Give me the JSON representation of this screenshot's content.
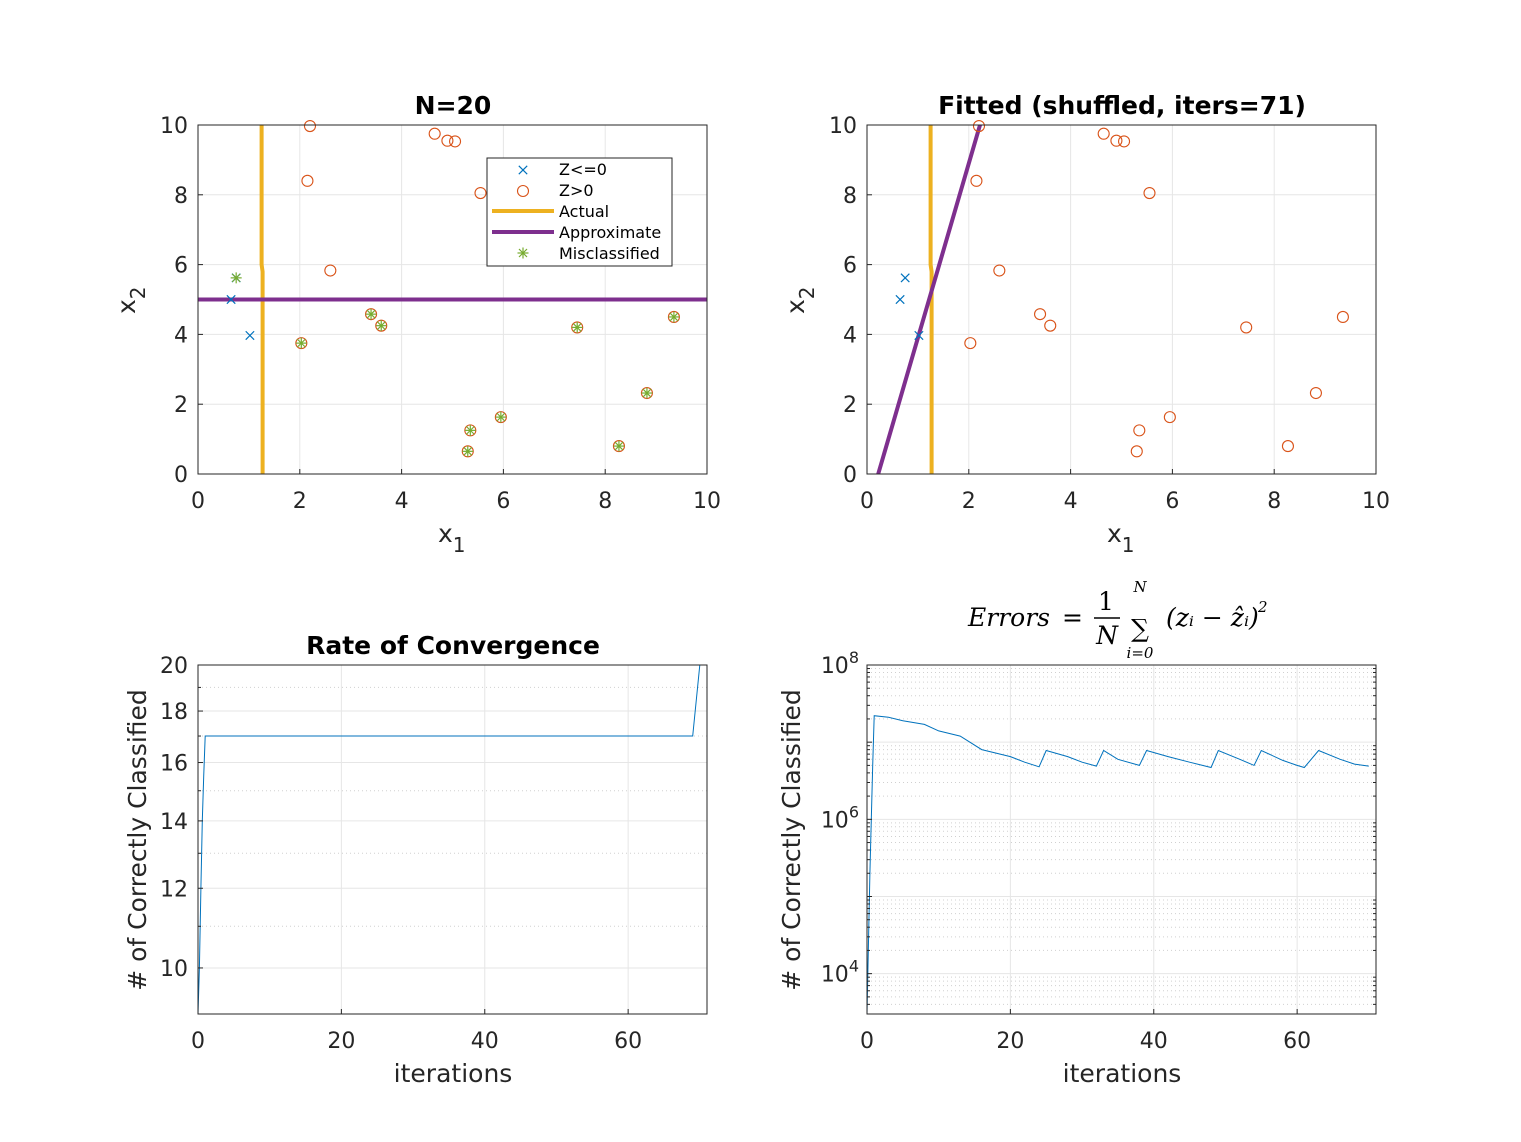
{
  "colors": {
    "blue": "#0072BD",
    "orange": "#D95319",
    "gold": "#EDB120",
    "purple": "#7E2F8E",
    "green": "#77AC30",
    "grid": "#e6e6e6",
    "axis": "#262626"
  },
  "chart_data": [
    {
      "type": "scatter",
      "title": "N=20",
      "xlabel": "x",
      "xlabel_sub": "1",
      "ylabel": "x",
      "ylabel_sub": "2",
      "xlim": [
        0,
        10
      ],
      "ylim": [
        0,
        10
      ],
      "xticks": [
        0,
        2,
        4,
        6,
        8,
        10
      ],
      "yticks": [
        0,
        2,
        4,
        6,
        8,
        10
      ],
      "grid": true,
      "legend_position": "top-right",
      "legend": [
        "Z<=0",
        "Z>0",
        "Actual",
        "Approximate",
        "Misclassified"
      ],
      "series": [
        {
          "name": "Z<=0",
          "marker": "x",
          "color_key": "blue",
          "points": [
            [
              0.65,
              5.0
            ],
            [
              0.75,
              5.62
            ],
            [
              1.02,
              3.97
            ]
          ]
        },
        {
          "name": "Z>0",
          "marker": "o",
          "color_key": "orange",
          "points": [
            [
              2.2,
              9.97
            ],
            [
              4.65,
              9.75
            ],
            [
              4.9,
              9.55
            ],
            [
              5.05,
              9.53
            ],
            [
              2.15,
              8.4
            ],
            [
              5.55,
              8.05
            ],
            [
              2.6,
              5.83
            ],
            [
              3.4,
              4.58
            ],
            [
              3.6,
              4.25
            ],
            [
              2.03,
              3.75
            ],
            [
              7.45,
              4.2
            ],
            [
              9.35,
              4.5
            ],
            [
              8.82,
              2.32
            ],
            [
              5.95,
              1.63
            ],
            [
              5.35,
              1.25
            ],
            [
              5.3,
              0.65
            ],
            [
              8.27,
              0.8
            ]
          ]
        },
        {
          "name": "Actual",
          "type": "line",
          "color_key": "gold",
          "points": [
            [
              1.25,
              10.0
            ],
            [
              1.25,
              6.0
            ],
            [
              1.27,
              5.8
            ],
            [
              1.27,
              0.0
            ]
          ]
        },
        {
          "name": "Approximate",
          "type": "line",
          "color_key": "purple",
          "points": [
            [
              0,
              5.0
            ],
            [
              10,
              5.0
            ]
          ]
        },
        {
          "name": "Misclassified",
          "marker": "*",
          "color_key": "green",
          "points": [
            [
              0.75,
              5.62
            ],
            [
              3.4,
              4.58
            ],
            [
              3.6,
              4.25
            ],
            [
              2.03,
              3.75
            ],
            [
              7.45,
              4.2
            ],
            [
              9.35,
              4.5
            ],
            [
              8.82,
              2.32
            ],
            [
              5.95,
              1.63
            ],
            [
              5.35,
              1.25
            ],
            [
              5.3,
              0.65
            ],
            [
              8.27,
              0.8
            ]
          ]
        }
      ]
    },
    {
      "type": "scatter",
      "title": "Fitted (shuffled, iters=71)",
      "xlabel": "x",
      "xlabel_sub": "1",
      "ylabel": "x",
      "ylabel_sub": "2",
      "xlim": [
        0,
        10
      ],
      "ylim": [
        0,
        10
      ],
      "xticks": [
        0,
        2,
        4,
        6,
        8,
        10
      ],
      "yticks": [
        0,
        2,
        4,
        6,
        8,
        10
      ],
      "grid": true,
      "series": [
        {
          "name": "Z<=0",
          "marker": "x",
          "color_key": "blue",
          "points": [
            [
              0.65,
              5.0
            ],
            [
              0.75,
              5.62
            ],
            [
              1.02,
              3.97
            ]
          ]
        },
        {
          "name": "Z>0",
          "marker": "o",
          "color_key": "orange",
          "points": [
            [
              2.2,
              9.97
            ],
            [
              4.65,
              9.75
            ],
            [
              4.9,
              9.55
            ],
            [
              5.05,
              9.53
            ],
            [
              2.15,
              8.4
            ],
            [
              5.55,
              8.05
            ],
            [
              2.6,
              5.83
            ],
            [
              3.4,
              4.58
            ],
            [
              3.6,
              4.25
            ],
            [
              2.03,
              3.75
            ],
            [
              7.45,
              4.2
            ],
            [
              9.35,
              4.5
            ],
            [
              8.82,
              2.32
            ],
            [
              5.95,
              1.63
            ],
            [
              5.35,
              1.25
            ],
            [
              5.3,
              0.65
            ],
            [
              8.27,
              0.8
            ]
          ]
        },
        {
          "name": "Actual",
          "type": "line",
          "color_key": "gold",
          "points": [
            [
              1.25,
              10.0
            ],
            [
              1.25,
              6.0
            ],
            [
              1.27,
              5.8
            ],
            [
              1.27,
              0.0
            ]
          ]
        },
        {
          "name": "Approximate",
          "type": "line",
          "color_key": "purple",
          "points": [
            [
              0.22,
              0.0
            ],
            [
              2.22,
              10.0
            ]
          ]
        }
      ]
    },
    {
      "type": "line",
      "title": "Rate of Convergence",
      "xlabel": "iterations",
      "ylabel": "# of Correctly Classified",
      "xlim": [
        0,
        71
      ],
      "ylim": [
        9,
        20
      ],
      "yscale": "log",
      "xticks": [
        0,
        20,
        40,
        60
      ],
      "yticks": [
        10,
        12,
        14,
        16,
        18,
        20
      ],
      "grid": true,
      "series": [
        {
          "color_key": "blue",
          "points": [
            [
              0,
              9
            ],
            [
              0.2,
              10
            ],
            [
              0.4,
              12
            ],
            [
              0.6,
              14
            ],
            [
              0.8,
              15.5
            ],
            [
              1,
              17
            ],
            [
              69,
              17
            ],
            [
              70,
              20
            ]
          ]
        }
      ]
    },
    {
      "type": "line",
      "title_math": {
        "lhs": "Errors",
        "eq": "=",
        "frac_num": "1",
        "frac_den": "N",
        "sum": "∑",
        "sum_top": "N",
        "sum_bottom": "i=0",
        "body": "(zᵢ − ẑᵢ)",
        "power": "2"
      },
      "xlabel": "iterations",
      "ylabel": "# of Correctly Classified",
      "xlim": [
        0,
        71
      ],
      "ylim": [
        3000,
        100000000
      ],
      "yscale": "log",
      "xticks": [
        0,
        20,
        40,
        60
      ],
      "yticks": [
        {
          "base": "10",
          "exp": "4",
          "value": 10000
        },
        {
          "base": "10",
          "exp": "6",
          "value": 1000000
        },
        {
          "base": "10",
          "exp": "8",
          "value": 100000000
        }
      ],
      "grid": true,
      "series": [
        {
          "color_key": "blue",
          "points": [
            [
              0,
              3000
            ],
            [
              0.4,
              200000
            ],
            [
              0.8,
              5000000
            ],
            [
              1,
              22000000
            ],
            [
              3,
              21000000
            ],
            [
              5,
              19000000
            ],
            [
              8,
              17000000
            ],
            [
              10,
              14000000
            ],
            [
              13,
              12000000
            ],
            [
              16,
              8000000
            ],
            [
              20,
              6500000
            ],
            [
              22,
              5500000
            ],
            [
              24,
              4800000
            ],
            [
              25,
              7800000
            ],
            [
              28,
              6500000
            ],
            [
              30,
              5500000
            ],
            [
              32,
              4900000
            ],
            [
              33,
              7800000
            ],
            [
              35,
              6000000
            ],
            [
              38,
              5000000
            ],
            [
              39,
              7800000
            ],
            [
              42,
              6500000
            ],
            [
              45,
              5500000
            ],
            [
              48,
              4700000
            ],
            [
              49,
              7800000
            ],
            [
              52,
              6000000
            ],
            [
              54,
              5000000
            ],
            [
              55,
              7800000
            ],
            [
              58,
              5800000
            ],
            [
              60,
              5000000
            ],
            [
              61,
              4700000
            ],
            [
              63,
              7800000
            ],
            [
              66,
              6000000
            ],
            [
              68,
              5200000
            ],
            [
              70,
              4900000
            ]
          ]
        }
      ]
    }
  ]
}
